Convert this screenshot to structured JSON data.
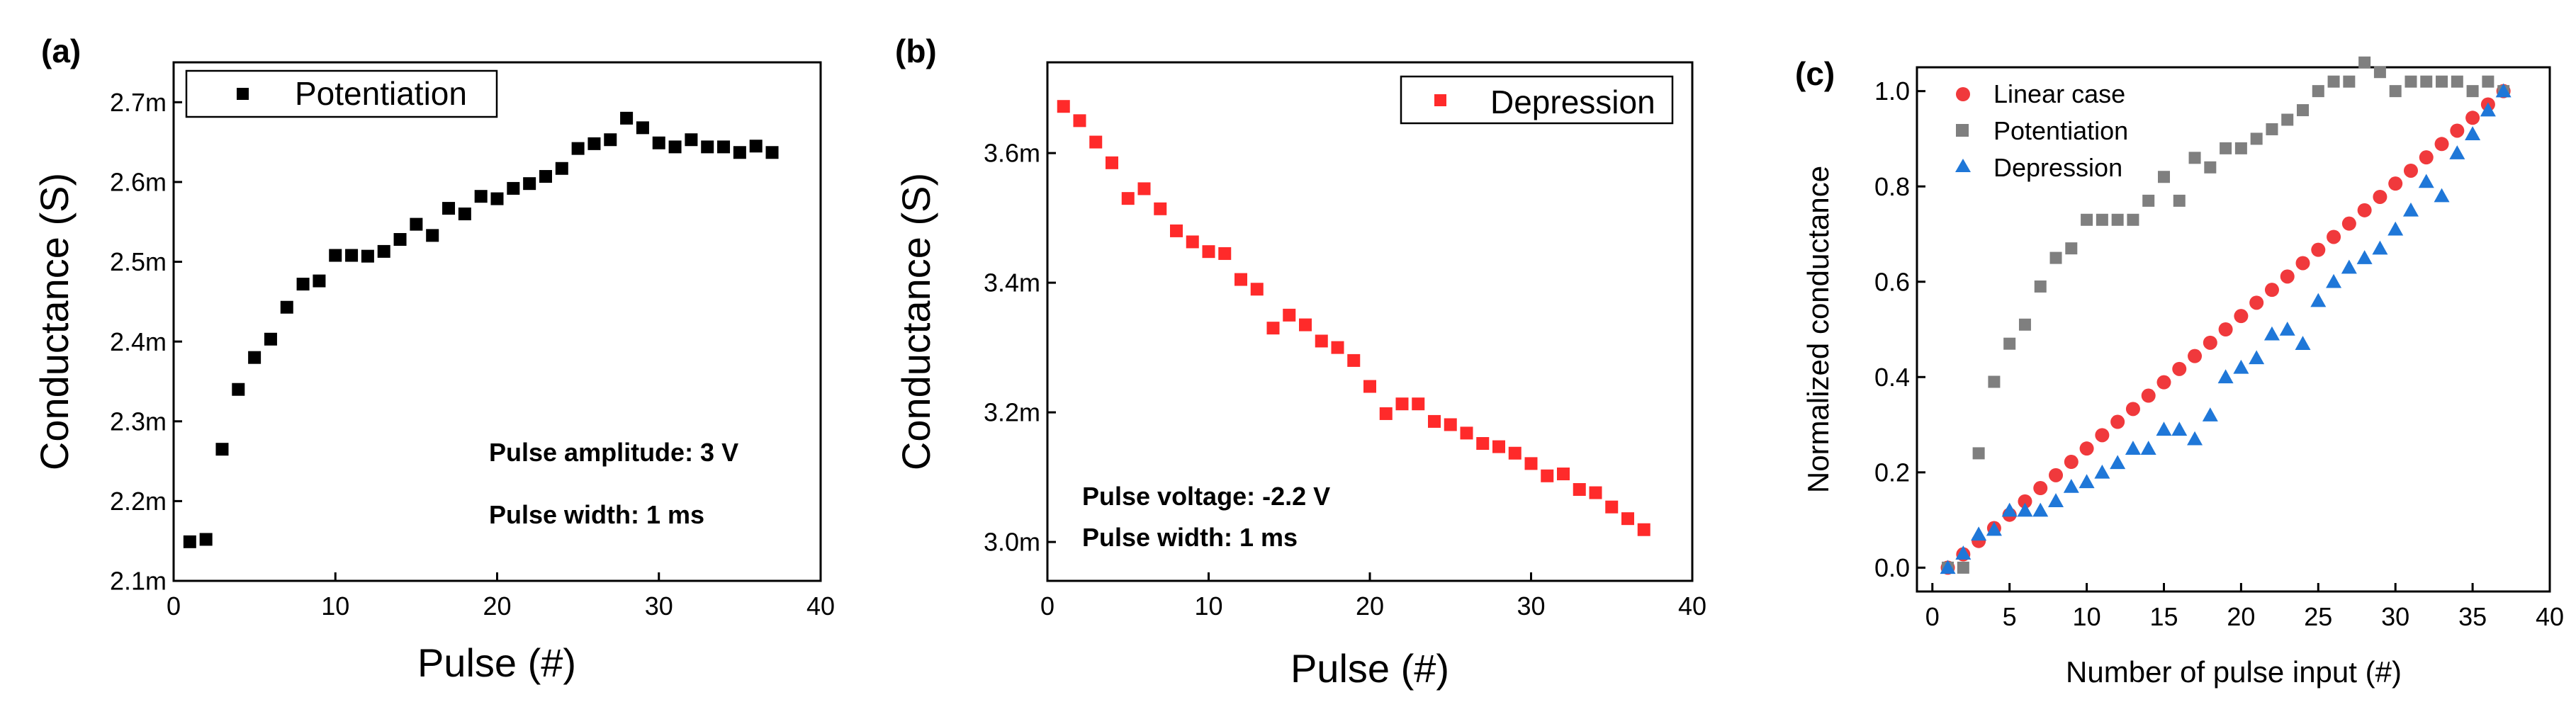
{
  "colors": {
    "black": "#000000",
    "red": "#ff2a2a",
    "gray": "#7f7f7f",
    "blue": "#1f77d8",
    "linear_red": "#f0393c"
  },
  "chart_data": [
    {
      "type": "scatter",
      "panel_label": "(a)",
      "xlabel": "Pulse (#)",
      "ylabel": "Conductance (S)",
      "xlim": [
        0,
        40
      ],
      "ylim": [
        2.1,
        2.75
      ],
      "xticks": [
        0,
        10,
        20,
        30,
        40
      ],
      "xtick_labels": [
        "0",
        "10",
        "20",
        "30",
        "40"
      ],
      "yticks": [
        2.1,
        2.2,
        2.3,
        2.4,
        2.5,
        2.6,
        2.7
      ],
      "ytick_labels": [
        "2.1m",
        "2.2m",
        "2.3m",
        "2.4m",
        "2.5m",
        "2.6m",
        "2.7m"
      ],
      "legend_position": "top-left",
      "annotations": [
        "Pulse amplitude: 3 V",
        "Pulse width: 1 ms"
      ],
      "series": [
        {
          "name": "Potentiation",
          "marker": "square",
          "color": "#000000",
          "x": [
            1,
            2,
            3,
            4,
            5,
            6,
            7,
            8,
            9,
            10,
            11,
            12,
            13,
            14,
            15,
            16,
            17,
            18,
            19,
            20,
            21,
            22,
            23,
            24,
            25,
            26,
            27,
            28,
            29,
            30,
            31,
            32,
            33,
            34,
            35,
            36,
            37
          ],
          "y": [
            2.149,
            2.152,
            2.265,
            2.34,
            2.38,
            2.403,
            2.443,
            2.472,
            2.476,
            2.508,
            2.508,
            2.507,
            2.513,
            2.528,
            2.547,
            2.533,
            2.567,
            2.56,
            2.582,
            2.579,
            2.592,
            2.598,
            2.607,
            2.617,
            2.642,
            2.648,
            2.653,
            2.68,
            2.668,
            2.649,
            2.644,
            2.653,
            2.644,
            2.644,
            2.637,
            2.645,
            2.637
          ]
        }
      ]
    },
    {
      "type": "scatter",
      "panel_label": "(b)",
      "xlabel": "Pulse (#)",
      "ylabel": "Conductance (S)",
      "xlim": [
        0,
        40
      ],
      "ylim": [
        2.94,
        3.74
      ],
      "xticks": [
        0,
        10,
        20,
        30,
        40
      ],
      "xtick_labels": [
        "0",
        "10",
        "20",
        "30",
        "40"
      ],
      "yticks": [
        3.0,
        3.2,
        3.4,
        3.6
      ],
      "ytick_labels": [
        "3.0m",
        "3.2m",
        "3.4m",
        "3.6m"
      ],
      "legend_position": "top-right",
      "annotations": [
        "Pulse voltage: -2.2 V",
        "Pulse width: 1 ms"
      ],
      "series": [
        {
          "name": "Depression",
          "marker": "square",
          "color": "#ff2a2a",
          "x": [
            1,
            2,
            3,
            4,
            5,
            6,
            7,
            8,
            9,
            10,
            11,
            12,
            13,
            14,
            15,
            16,
            17,
            18,
            19,
            20,
            21,
            22,
            23,
            24,
            25,
            26,
            27,
            28,
            29,
            30,
            31,
            32,
            33,
            34,
            35,
            36,
            37
          ],
          "y": [
            3.672,
            3.65,
            3.617,
            3.585,
            3.53,
            3.545,
            3.514,
            3.48,
            3.463,
            3.448,
            3.445,
            3.405,
            3.39,
            3.33,
            3.35,
            3.335,
            3.31,
            3.3,
            3.28,
            3.24,
            3.198,
            3.213,
            3.213,
            3.186,
            3.181,
            3.168,
            3.152,
            3.147,
            3.137,
            3.121,
            3.102,
            3.105,
            3.081,
            3.076,
            3.054,
            3.036,
            3.019
          ]
        }
      ]
    },
    {
      "type": "scatter",
      "panel_label": "(c)",
      "xlabel": "Number of pulse input (#)",
      "ylabel": "Normalized conductance",
      "xlim": [
        -1,
        40
      ],
      "ylim": [
        -0.05,
        1.05
      ],
      "xticks": [
        0,
        5,
        10,
        15,
        20,
        25,
        30,
        35,
        40
      ],
      "xtick_labels": [
        "0",
        "5",
        "10",
        "15",
        "20",
        "25",
        "30",
        "35",
        "40"
      ],
      "yticks": [
        0.0,
        0.2,
        0.4,
        0.6,
        0.8,
        1.0
      ],
      "ytick_labels": [
        "0.0",
        "0.2",
        "0.4",
        "0.6",
        "0.8",
        "1.0"
      ],
      "legend_position": "top-left",
      "series": [
        {
          "name": "Linear case",
          "marker": "circle",
          "color": "#f0393c",
          "x": [
            1,
            2,
            3,
            4,
            5,
            6,
            7,
            8,
            9,
            10,
            11,
            12,
            13,
            14,
            15,
            16,
            17,
            18,
            19,
            20,
            21,
            22,
            23,
            24,
            25,
            26,
            27,
            28,
            29,
            30,
            31,
            32,
            33,
            34,
            35,
            36,
            37
          ],
          "y": [
            0.0,
            0.028,
            0.056,
            0.083,
            0.111,
            0.139,
            0.167,
            0.194,
            0.222,
            0.25,
            0.278,
            0.306,
            0.333,
            0.361,
            0.389,
            0.417,
            0.444,
            0.472,
            0.5,
            0.528,
            0.556,
            0.583,
            0.611,
            0.639,
            0.667,
            0.694,
            0.722,
            0.75,
            0.778,
            0.806,
            0.833,
            0.861,
            0.889,
            0.917,
            0.944,
            0.972,
            1.0
          ]
        },
        {
          "name": "Potentiation",
          "marker": "square",
          "color": "#7f7f7f",
          "x": [
            1,
            2,
            3,
            4,
            5,
            6,
            7,
            8,
            9,
            10,
            11,
            12,
            13,
            14,
            15,
            16,
            17,
            18,
            19,
            20,
            21,
            22,
            23,
            24,
            25,
            26,
            27,
            28,
            29,
            30,
            31,
            32,
            33,
            34,
            35,
            36,
            37
          ],
          "y": [
            0.0,
            0.0,
            0.24,
            0.39,
            0.47,
            0.51,
            0.59,
            0.65,
            0.67,
            0.73,
            0.73,
            0.73,
            0.73,
            0.77,
            0.82,
            0.77,
            0.86,
            0.84,
            0.88,
            0.88,
            0.9,
            0.92,
            0.94,
            0.96,
            1.0,
            1.02,
            1.02,
            1.06,
            1.04,
            1.0,
            1.02,
            1.02,
            1.02,
            1.02,
            1.0,
            1.02,
            1.0
          ]
        },
        {
          "name": "Depression",
          "marker": "triangle",
          "color": "#1f77d8",
          "x": [
            1,
            2,
            3,
            4,
            5,
            6,
            7,
            8,
            9,
            10,
            11,
            12,
            13,
            14,
            15,
            16,
            17,
            18,
            19,
            20,
            21,
            22,
            23,
            24,
            25,
            26,
            27,
            28,
            29,
            30,
            31,
            32,
            33,
            34,
            35,
            36,
            37
          ],
          "y": [
            0.0,
            0.03,
            0.07,
            0.08,
            0.12,
            0.12,
            0.12,
            0.14,
            0.17,
            0.18,
            0.2,
            0.22,
            0.25,
            0.25,
            0.29,
            0.29,
            0.27,
            0.32,
            0.4,
            0.42,
            0.44,
            0.49,
            0.5,
            0.47,
            0.56,
            0.6,
            0.63,
            0.65,
            0.67,
            0.71,
            0.75,
            0.81,
            0.78,
            0.87,
            0.91,
            0.96,
            1.0
          ]
        }
      ]
    }
  ]
}
